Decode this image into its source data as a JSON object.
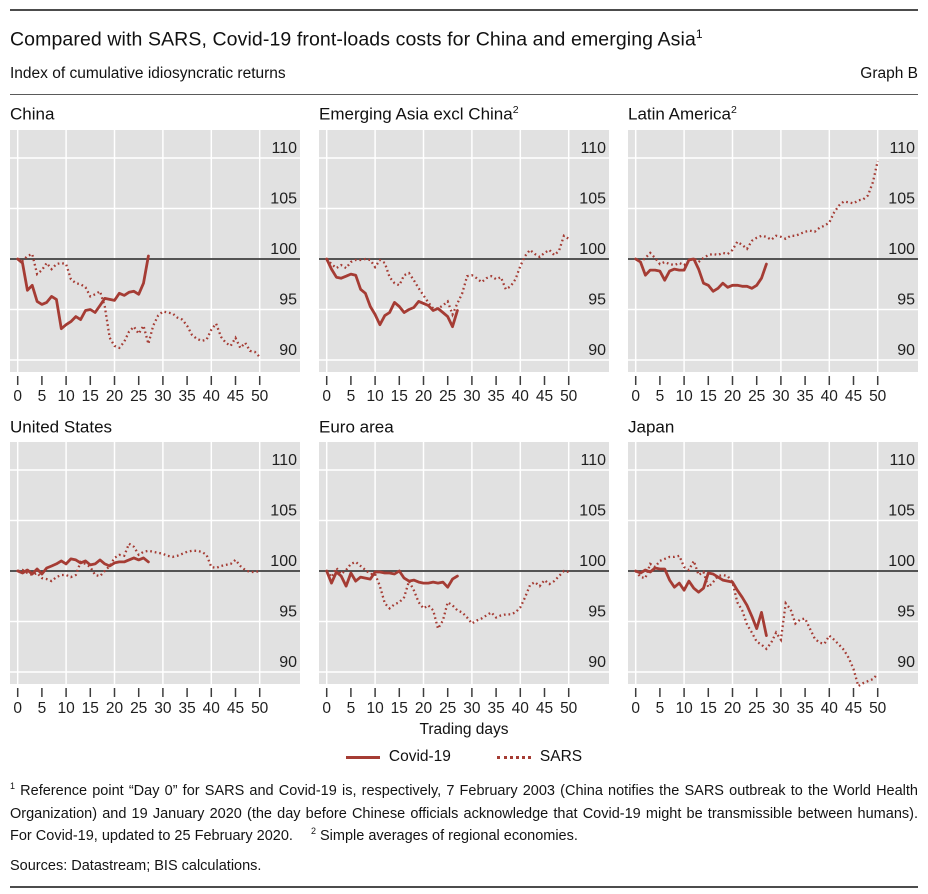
{
  "header": {
    "title": "Compared with SARS, Covid-19 front-loads costs for China and emerging Asia",
    "title_sup": "1",
    "subtitle": "Index of cumulative idiosyncratic returns",
    "graph_label": "Graph B"
  },
  "axis": {
    "xlabel": "Trading days",
    "x_ticks": [
      0,
      5,
      10,
      15,
      20,
      25,
      30,
      35,
      40,
      45,
      50
    ],
    "y_ticks": [
      90,
      95,
      100,
      105,
      110
    ],
    "baseline": 100
  },
  "legend": [
    {
      "label": "Covid-19",
      "style": "solid"
    },
    {
      "label": "SARS",
      "style": "dotted"
    }
  ],
  "colors": {
    "series": "#A53C34",
    "plot_bg": "#E1E1E1",
    "grid": "#FFFFFF",
    "baseline": "#3D3D3D",
    "tick": "#3D3D3D",
    "axis_text": "#1f1f1f"
  },
  "footnotes": [
    {
      "marker": "1",
      "text": "Reference point “Day 0” for SARS and Covid-19 is, respectively, 7 February 2003 (China notifies the SARS outbreak to the World Health Organization) and 19 January 2020 (the day before Chinese officials acknowledge that Covid-19 might be transmissible between humans). For Covid-19, updated to 25 February 2020."
    },
    {
      "marker": "2",
      "text": "Simple averages of regional economies."
    }
  ],
  "sources": "Sources: Datastream; BIS calculations.",
  "chart_data": {
    "type": "line",
    "x_unit": "Trading days since Day 0 (Covid-19 series: days 0-27; SARS series: days 0-50)",
    "x_ticks": [
      0,
      5,
      10,
      15,
      20,
      25,
      30,
      35,
      40,
      45,
      50
    ],
    "y_ticks": [
      90,
      95,
      100,
      105,
      110
    ],
    "ylim": [
      88.8,
      112.8
    ],
    "baseline": 100,
    "grid": true,
    "legend_position": "bottom-center",
    "series_names": [
      "Covid-19",
      "SARS"
    ],
    "panels": [
      {
        "title": "China",
        "title_sup": "",
        "covid": [
          100,
          99.6,
          96.9,
          97.4,
          95.8,
          95.5,
          95.7,
          96.3,
          96.0,
          93.1,
          93.5,
          93.8,
          94.3,
          94.0,
          94.9,
          95.0,
          94.7,
          95.4,
          96.1,
          96.0,
          95.9,
          96.6,
          96.4,
          96.7,
          96.8,
          96.5,
          97.6,
          100.3
        ],
        "sars": [
          100,
          99.8,
          100.3,
          100.5,
          98.5,
          98.9,
          99.6,
          99.0,
          99.5,
          99.6,
          99.5,
          98.0,
          97.6,
          97.5,
          97.2,
          96.3,
          96.5,
          96.8,
          95.3,
          92.2,
          91.4,
          91.2,
          91.8,
          92.8,
          93.3,
          92.6,
          93.4,
          91.6,
          93.4,
          94.4,
          94.8,
          94.7,
          94.6,
          94.2,
          94.0,
          93.4,
          92.5,
          92.1,
          91.9,
          92.0,
          93.0,
          93.6,
          92.3,
          91.7,
          91.4,
          92.2,
          91.2,
          91.7,
          90.9,
          90.8,
          90.3
        ]
      },
      {
        "title": "Emerging Asia excl China",
        "title_sup": "2",
        "covid": [
          100,
          99.0,
          98.2,
          98.1,
          98.3,
          98.5,
          98.4,
          97.0,
          96.6,
          95.3,
          94.5,
          93.5,
          94.4,
          94.7,
          95.7,
          95.3,
          94.7,
          95.0,
          95.2,
          95.8,
          95.6,
          95.4,
          94.9,
          95.1,
          94.7,
          94.3,
          93.3,
          94.9
        ],
        "sars": [
          100,
          99.5,
          99.1,
          99.4,
          99.1,
          99.7,
          99.9,
          99.9,
          100.0,
          99.9,
          99.2,
          99.9,
          99.6,
          98.2,
          97.6,
          97.4,
          98.4,
          98.6,
          97.9,
          97.1,
          96.4,
          95.7,
          95.1,
          95.1,
          95.4,
          95.8,
          94.5,
          95.6,
          96.6,
          98.3,
          98.4,
          98.1,
          97.7,
          98.1,
          98.3,
          98.0,
          98.2,
          97.0,
          97.3,
          98.0,
          99.3,
          100.3,
          100.9,
          100.5,
          100.2,
          100.6,
          100.9,
          100.4,
          100.8,
          102.3,
          102.0
        ]
      },
      {
        "title": "Latin America",
        "title_sup": "2",
        "covid": [
          100,
          99.7,
          98.4,
          98.9,
          98.9,
          98.8,
          97.9,
          98.8,
          99.0,
          98.9,
          98.9,
          99.9,
          100.0,
          99.0,
          97.6,
          97.4,
          96.8,
          97.1,
          97.6,
          97.2,
          97.4,
          97.4,
          97.3,
          97.3,
          97.1,
          97.4,
          98.1,
          99.5
        ],
        "sars": [
          100,
          99.7,
          100.1,
          100.6,
          100.1,
          99.5,
          99.7,
          99.5,
          99.4,
          99.6,
          99.4,
          99.8,
          100.1,
          99.7,
          100.1,
          100.4,
          100.5,
          100.4,
          100.6,
          100.5,
          100.9,
          101.7,
          101.4,
          101.0,
          101.8,
          102.1,
          102.3,
          102.2,
          101.9,
          102.3,
          102.2,
          102.0,
          102.3,
          102.3,
          102.5,
          102.7,
          102.8,
          102.7,
          103.1,
          103.3,
          103.6,
          104.6,
          105.3,
          105.7,
          105.6,
          105.5,
          105.8,
          105.9,
          106.3,
          107.6,
          109.7
        ]
      },
      {
        "title": "United States",
        "title_sup": "",
        "covid": [
          100,
          99.8,
          100.1,
          99.7,
          100.2,
          99.7,
          100.3,
          100.5,
          100.7,
          101.0,
          100.7,
          101.2,
          101.1,
          100.8,
          101.0,
          100.6,
          100.7,
          101.1,
          100.7,
          100.5,
          100.8,
          100.9,
          100.9,
          101.1,
          101.3,
          101.1,
          101.3,
          100.9
        ],
        "sars": [
          100,
          100.1,
          99.8,
          99.6,
          99.8,
          99.3,
          99.2,
          99.0,
          99.4,
          99.6,
          99.6,
          99.4,
          99.6,
          100.9,
          100.7,
          100.4,
          99.6,
          99.5,
          100.0,
          100.5,
          101.3,
          101.6,
          101.5,
          102.7,
          102.4,
          101.6,
          101.9,
          102.0,
          101.9,
          101.8,
          101.7,
          101.5,
          101.4,
          101.5,
          101.7,
          101.9,
          102.0,
          102.0,
          101.9,
          101.6,
          100.4,
          100.3,
          100.5,
          100.6,
          100.7,
          101.1,
          100.5,
          100.1,
          99.9,
          99.9,
          100.0
        ]
      },
      {
        "title": "Euro area",
        "title_sup": "",
        "covid": [
          100,
          98.8,
          99.9,
          99.5,
          98.5,
          99.8,
          99.0,
          99.4,
          99.3,
          99.2,
          99.9,
          99.9,
          99.8,
          99.8,
          99.7,
          100.0,
          99.3,
          99.0,
          99.1,
          98.9,
          98.8,
          98.8,
          98.9,
          98.8,
          98.9,
          98.4,
          99.2,
          99.5
        ],
        "sars": [
          100,
          99.4,
          100.3,
          99.7,
          100.1,
          100.7,
          100.9,
          100.5,
          100.1,
          99.7,
          99.7,
          98.5,
          96.8,
          96.3,
          96.7,
          96.9,
          97.4,
          99.0,
          98.1,
          96.9,
          96.3,
          96.6,
          96.1,
          94.3,
          95.1,
          96.9,
          96.6,
          96.1,
          95.9,
          95.4,
          94.8,
          95.1,
          95.3,
          95.6,
          95.9,
          95.4,
          95.6,
          95.7,
          95.7,
          95.9,
          96.4,
          97.4,
          98.6,
          98.9,
          98.5,
          99.1,
          98.7,
          99.0,
          99.5,
          100.0,
          99.9
        ]
      },
      {
        "title": "Japan",
        "title_sup": "",
        "covid": [
          100,
          99.8,
          100.1,
          99.9,
          100.3,
          100.2,
          100.2,
          99.1,
          98.4,
          98.8,
          98.1,
          99.0,
          98.3,
          97.9,
          98.3,
          99.8,
          99.7,
          99.4,
          99.1,
          99.0,
          98.9,
          98.1,
          97.4,
          96.6,
          95.5,
          94.3,
          95.9,
          93.6
        ],
        "sars": [
          100,
          99.4,
          99.3,
          100.7,
          100.4,
          101.0,
          101.2,
          101.4,
          101.4,
          101.5,
          100.4,
          100.1,
          101.0,
          99.6,
          99.9,
          98.4,
          98.9,
          99.5,
          99.6,
          99.5,
          98.9,
          96.9,
          96.1,
          94.7,
          93.9,
          93.0,
          92.7,
          92.3,
          92.9,
          93.9,
          93.2,
          96.8,
          96.2,
          94.8,
          95.2,
          95.3,
          94.3,
          93.3,
          92.9,
          92.8,
          93.6,
          93.2,
          92.7,
          92.2,
          91.4,
          90.3,
          88.6,
          88.9,
          89.1,
          89.3,
          89.8
        ]
      }
    ]
  }
}
